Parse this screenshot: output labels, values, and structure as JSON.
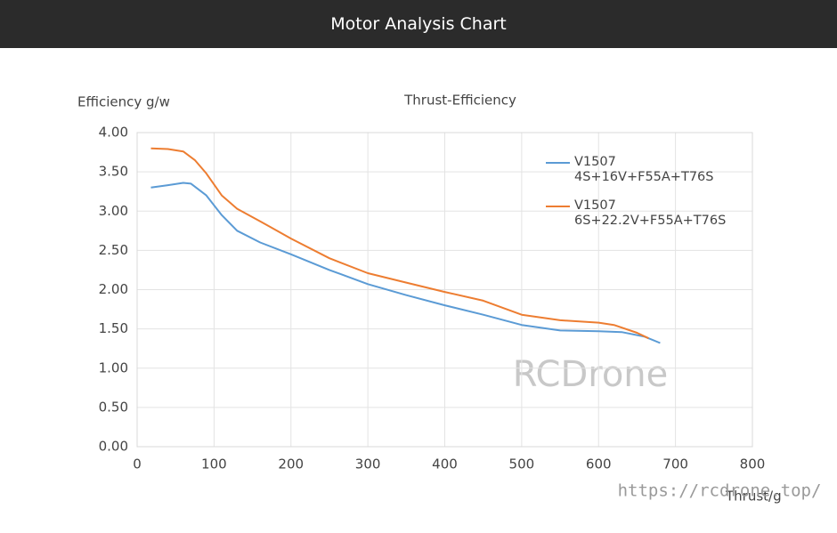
{
  "header": {
    "title": "Motor Analysis Chart"
  },
  "chart_data": {
    "type": "line",
    "title": "Thrust-Efficiency",
    "y_label": "Efficiency g/w",
    "x_label": "Thrust/g",
    "watermark": "RCDrone",
    "url_watermark": "https://rcdrone.top/",
    "xlim": [
      0,
      800
    ],
    "xticks": [
      0,
      100,
      200,
      300,
      400,
      500,
      600,
      700,
      800
    ],
    "ylim": [
      0,
      4
    ],
    "yticks": [
      {
        "value": 0,
        "label": "0.00"
      },
      {
        "value": 0.5,
        "label": "0.50"
      },
      {
        "value": 1,
        "label": "1.00"
      },
      {
        "value": 1.5,
        "label": "1.50"
      },
      {
        "value": 2,
        "label": "2.00"
      },
      {
        "value": 2.5,
        "label": "2.50"
      },
      {
        "value": 3,
        "label": "3.00"
      },
      {
        "value": 3.5,
        "label": "3.50"
      },
      {
        "value": 4,
        "label": "4.00"
      }
    ],
    "grid": true,
    "series": [
      {
        "name": "V1507\n4S+16V+F55A+T76S",
        "color": "#5b9bd5",
        "x": [
          18,
          40,
          60,
          70,
          90,
          110,
          130,
          160,
          200,
          250,
          300,
          350,
          400,
          450,
          500,
          550,
          600,
          630,
          660,
          680
        ],
        "values": [
          3.3,
          3.33,
          3.36,
          3.35,
          3.2,
          2.95,
          2.75,
          2.6,
          2.45,
          2.25,
          2.07,
          1.93,
          1.8,
          1.68,
          1.55,
          1.48,
          1.47,
          1.46,
          1.4,
          1.32
        ]
      },
      {
        "name": "V1507\n6S+22.2V+F55A+T76S",
        "color": "#ed7d31",
        "x": [
          18,
          40,
          60,
          75,
          90,
          110,
          130,
          160,
          200,
          250,
          300,
          350,
          400,
          450,
          500,
          550,
          600,
          620,
          650,
          665
        ],
        "values": [
          3.8,
          3.79,
          3.76,
          3.65,
          3.48,
          3.2,
          3.03,
          2.87,
          2.65,
          2.4,
          2.21,
          2.09,
          1.97,
          1.86,
          1.68,
          1.61,
          1.58,
          1.55,
          1.45,
          1.38
        ]
      }
    ]
  }
}
